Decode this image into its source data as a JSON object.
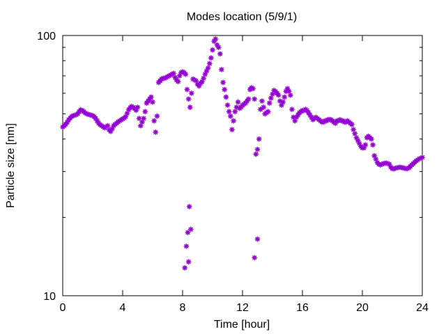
{
  "chart_data": {
    "type": "scatter",
    "title": "Modes location (5/9/1)",
    "xlabel": "Time [hour]",
    "ylabel": "Particle size [nm]",
    "xlim": [
      0,
      24
    ],
    "ylim": [
      10,
      100
    ],
    "yscale": "log",
    "x_ticks": [
      0,
      4,
      8,
      12,
      16,
      20,
      24
    ],
    "x_tick_labels": [
      "0",
      "4",
      "8",
      "12",
      "16",
      "20",
      "24"
    ],
    "y_tick_labels": [
      "10",
      "100"
    ],
    "y_ticks": [
      10,
      100
    ],
    "grid": false,
    "legend": "none",
    "marker": "asterisk",
    "color": "#9400d3",
    "series": [
      {
        "x": [
          0.0,
          0.1,
          0.2,
          0.3,
          0.4,
          0.5,
          0.6,
          0.7,
          0.8,
          0.9,
          1.0,
          1.1,
          1.2,
          1.3,
          1.4,
          1.5,
          1.6,
          1.7,
          1.8,
          1.9,
          2.0,
          2.1,
          2.2,
          2.3,
          2.4,
          2.5,
          2.6,
          2.7,
          2.8,
          2.9,
          3.0,
          3.1,
          3.2,
          3.3,
          3.4,
          3.5,
          3.6,
          3.7,
          3.8,
          3.9,
          4.0,
          4.1,
          4.2,
          4.3,
          4.4,
          4.5,
          4.6,
          4.7,
          4.8,
          4.9,
          5.0,
          5.1,
          5.2,
          5.3,
          5.4,
          5.5,
          5.6,
          5.7,
          5.8,
          5.9,
          6.0,
          6.1,
          6.2,
          6.3,
          6.4,
          6.5,
          6.6,
          6.7,
          6.8,
          6.9,
          7.0,
          7.1,
          7.2,
          7.3,
          7.4,
          7.5,
          7.6,
          7.7,
          7.8,
          7.9,
          8.0,
          8.1,
          8.2,
          8.3,
          8.4,
          8.5,
          8.6,
          8.7,
          8.8,
          8.9,
          9.0,
          9.1,
          9.2,
          9.3,
          9.4,
          9.5,
          9.6,
          9.7,
          9.8,
          9.9,
          10.0,
          10.1,
          10.2,
          10.3,
          10.4,
          10.5,
          10.6,
          10.7,
          10.8,
          10.9,
          11.0,
          11.1,
          11.2,
          11.3,
          11.4,
          11.5,
          11.6,
          11.7,
          11.8,
          11.9,
          12.0,
          12.1,
          12.2,
          12.3,
          12.4,
          12.5,
          12.6,
          12.7,
          12.8,
          12.9,
          13.0,
          13.1,
          13.2,
          13.3,
          13.4,
          13.5,
          13.6,
          13.7,
          13.8,
          13.9,
          14.0,
          14.1,
          14.2,
          14.3,
          14.4,
          14.5,
          14.6,
          14.7,
          14.8,
          14.9,
          15.0,
          15.1,
          15.2,
          15.3,
          15.4,
          15.5,
          15.6,
          15.7,
          15.8,
          15.9,
          16.0,
          16.1,
          16.2,
          16.3,
          16.4,
          16.5,
          16.6,
          16.7,
          16.8,
          16.9,
          17.0,
          17.1,
          17.2,
          17.3,
          17.4,
          17.5,
          17.6,
          17.7,
          17.8,
          17.9,
          18.0,
          18.1,
          18.2,
          18.3,
          18.4,
          18.5,
          18.6,
          18.7,
          18.8,
          18.9,
          19.0,
          19.1,
          19.2,
          19.3,
          19.4,
          19.5,
          19.6,
          19.7,
          19.8,
          19.9,
          20.0,
          20.1,
          20.2,
          20.3,
          20.4,
          20.5,
          20.6,
          20.7,
          20.8,
          20.9,
          21.0,
          21.1,
          21.2,
          21.3,
          21.4,
          21.5,
          21.6,
          21.7,
          21.8,
          21.9,
          22.0,
          22.1,
          22.2,
          22.3,
          22.4,
          22.5,
          22.6,
          22.7,
          22.8,
          22.9,
          23.0,
          23.1,
          23.2,
          23.3,
          23.4,
          23.5,
          23.6,
          23.7,
          23.8,
          23.9,
          24.0,
          8.15,
          8.25,
          8.35,
          8.45,
          8.55,
          8.4,
          12.8,
          13.0
        ],
        "y": [
          44.5,
          45.0,
          45.6,
          46.4,
          47.4,
          48.2,
          48.8,
          49.2,
          49.4,
          49.6,
          50.0,
          51.0,
          51.8,
          51.5,
          51.0,
          50.4,
          50.0,
          49.8,
          49.6,
          49.4,
          49.2,
          48.8,
          48.0,
          47.0,
          46.0,
          45.4,
          45.0,
          44.6,
          44.2,
          44.6,
          45.0,
          43.4,
          42.8,
          43.8,
          45.0,
          45.6,
          46.0,
          46.6,
          47.0,
          47.4,
          47.8,
          48.2,
          48.8,
          50.2,
          51.8,
          52.8,
          53.4,
          53.0,
          52.4,
          51.6,
          53.0,
          48.0,
          45.0,
          46.5,
          48.0,
          51.0,
          55.0,
          56.0,
          57.0,
          58.0,
          55.5,
          47.0,
          42.5,
          49.0,
          66.0,
          67.0,
          68.0,
          68.5,
          68.5,
          69.0,
          69.5,
          70.0,
          70.5,
          71.0,
          71.5,
          69.0,
          67.5,
          66.5,
          70.0,
          72.0,
          72.5,
          72.0,
          71.0,
          62.0,
          57.0,
          53.0,
          60.0,
          68.0,
          67.5,
          67.0,
          65.0,
          64.0,
          65.5,
          66.5,
          68.5,
          71.0,
          73.0,
          75.0,
          78.0,
          82.0,
          88.0,
          95.0,
          97.0,
          92.0,
          90.0,
          85.0,
          74.0,
          66.0,
          62.0,
          58.0,
          54.0,
          51.0,
          49.0,
          43.5,
          47.0,
          51.0,
          53.0,
          55.5,
          52.5,
          53.0,
          54.0,
          54.5,
          55.0,
          56.0,
          57.0,
          62.0,
          63.0,
          62.5,
          57.0,
          35.0,
          36.5,
          40.0,
          52.0,
          56.0,
          53.0,
          50.0,
          50.5,
          51.0,
          55.0,
          57.5,
          59.5,
          61.5,
          61.0,
          60.0,
          59.0,
          56.0,
          54.0,
          55.5,
          58.0,
          61.0,
          62.5,
          61.0,
          59.0,
          52.0,
          48.5,
          47.0,
          48.5,
          49.5,
          50.5,
          51.0,
          51.5,
          51.5,
          52.0,
          51.5,
          50.5,
          49.5,
          48.5,
          47.5,
          48.0,
          48.5,
          48.0,
          47.5,
          47.0,
          46.5,
          46.5,
          47.0,
          47.0,
          47.5,
          47.5,
          47.5,
          47.0,
          46.5,
          46.0,
          47.0,
          47.0,
          47.5,
          47.0,
          47.0,
          46.5,
          46.5,
          47.0,
          46.5,
          46.0,
          45.5,
          43.5,
          42.0,
          40.5,
          39.5,
          38.5,
          37.5,
          37.0,
          37.0,
          38.0,
          40.5,
          41.0,
          40.5,
          40.0,
          38.0,
          34.5,
          33.5,
          32.5,
          32.0,
          31.8,
          32.0,
          32.2,
          32.3,
          32.3,
          32.2,
          32.0,
          31.2,
          30.8,
          30.7,
          30.9,
          31.0,
          31.1,
          31.2,
          31.1,
          31.0,
          30.9,
          30.8,
          30.8,
          31.0,
          31.4,
          31.8,
          32.2,
          32.6,
          33.0,
          33.3,
          33.6,
          33.8,
          34.0,
          12.8,
          15.5,
          17.5,
          22.0,
          18.0,
          13.5,
          14.0,
          16.5
        ]
      }
    ]
  }
}
